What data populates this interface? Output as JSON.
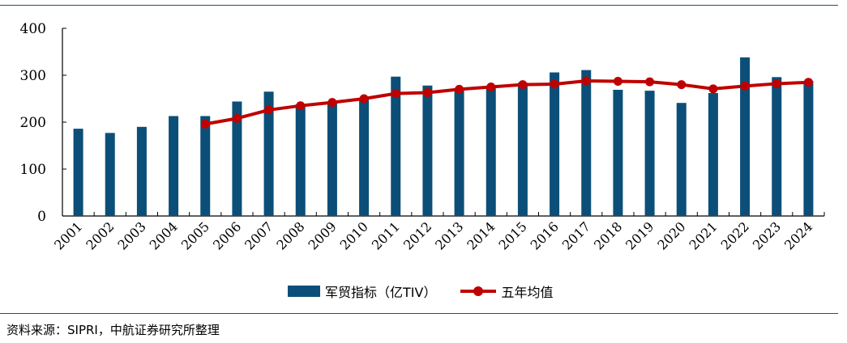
{
  "chart_data": {
    "type": "bar+line",
    "categories": [
      "2001",
      "2002",
      "2003",
      "2004",
      "2005",
      "2006",
      "2007",
      "2008",
      "2009",
      "2010",
      "2011",
      "2012",
      "2013",
      "2014",
      "2015",
      "2016",
      "2017",
      "2018",
      "2019",
      "2020",
      "2021",
      "2022",
      "2023",
      "2024"
    ],
    "series": [
      {
        "name": "军贸指标（亿TIV）",
        "type": "bar",
        "color": "#0b4f78",
        "values": [
          186,
          177,
          190,
          213,
          213,
          244,
          265,
          238,
          242,
          252,
          297,
          278,
          270,
          276,
          284,
          306,
          311,
          269,
          267,
          241,
          262,
          338,
          296,
          288
        ]
      },
      {
        "name": "五年均值",
        "type": "line",
        "color": "#c00000",
        "values": [
          null,
          null,
          null,
          null,
          196,
          208,
          226,
          235,
          242,
          250,
          261,
          263,
          270,
          275,
          280,
          281,
          288,
          287,
          286,
          280,
          271,
          277,
          282,
          285
        ]
      }
    ],
    "yticks": [
      "0",
      "100",
      "200",
      "300",
      "400"
    ],
    "ylim": [
      0,
      400
    ],
    "title": "",
    "xlabel": "",
    "ylabel": "",
    "legend_position": "bottom"
  },
  "legend": {
    "bar_label": "军贸指标（亿TIV）",
    "line_label": "五年均值"
  },
  "source_text": "资料来源：SIPRI，中航证券研究所整理"
}
